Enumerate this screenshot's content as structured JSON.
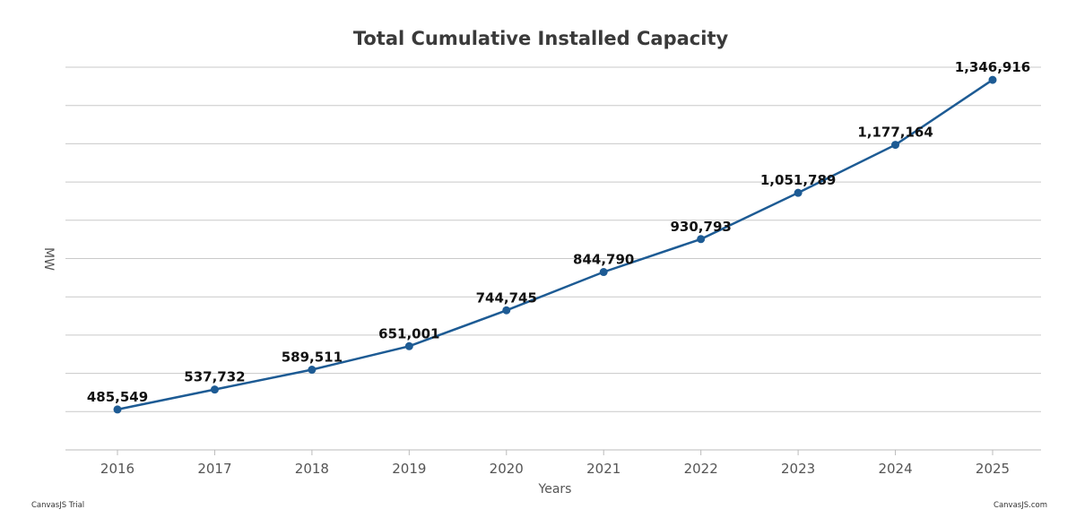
{
  "chart_data": {
    "type": "line",
    "title": "Total Cumulative Installed Capacity",
    "xlabel": "Years",
    "ylabel": "MW",
    "categories": [
      "2016",
      "2017",
      "2018",
      "2019",
      "2020",
      "2021",
      "2022",
      "2023",
      "2024",
      "2025"
    ],
    "series": [
      {
        "values": [
          485549,
          537732,
          589511,
          651001,
          744745,
          844790,
          930793,
          1051789,
          1177164,
          1346916
        ]
      }
    ],
    "data_labels": [
      "485,549",
      "537,732",
      "589,511",
      "651,001",
      "744,745",
      "844,790",
      "930,793",
      "1,051,789",
      "1,177,164",
      "1,346,916"
    ],
    "ylim": [
      380000,
      1380000
    ],
    "y_tick_labels_visible": false,
    "grid": true,
    "legend": "none",
    "colors": {
      "series": "#1d5b94",
      "grid": "#c9c9c9"
    }
  },
  "credits": {
    "left": "CanvasJS Trial",
    "right": "CanvasJS.com"
  }
}
